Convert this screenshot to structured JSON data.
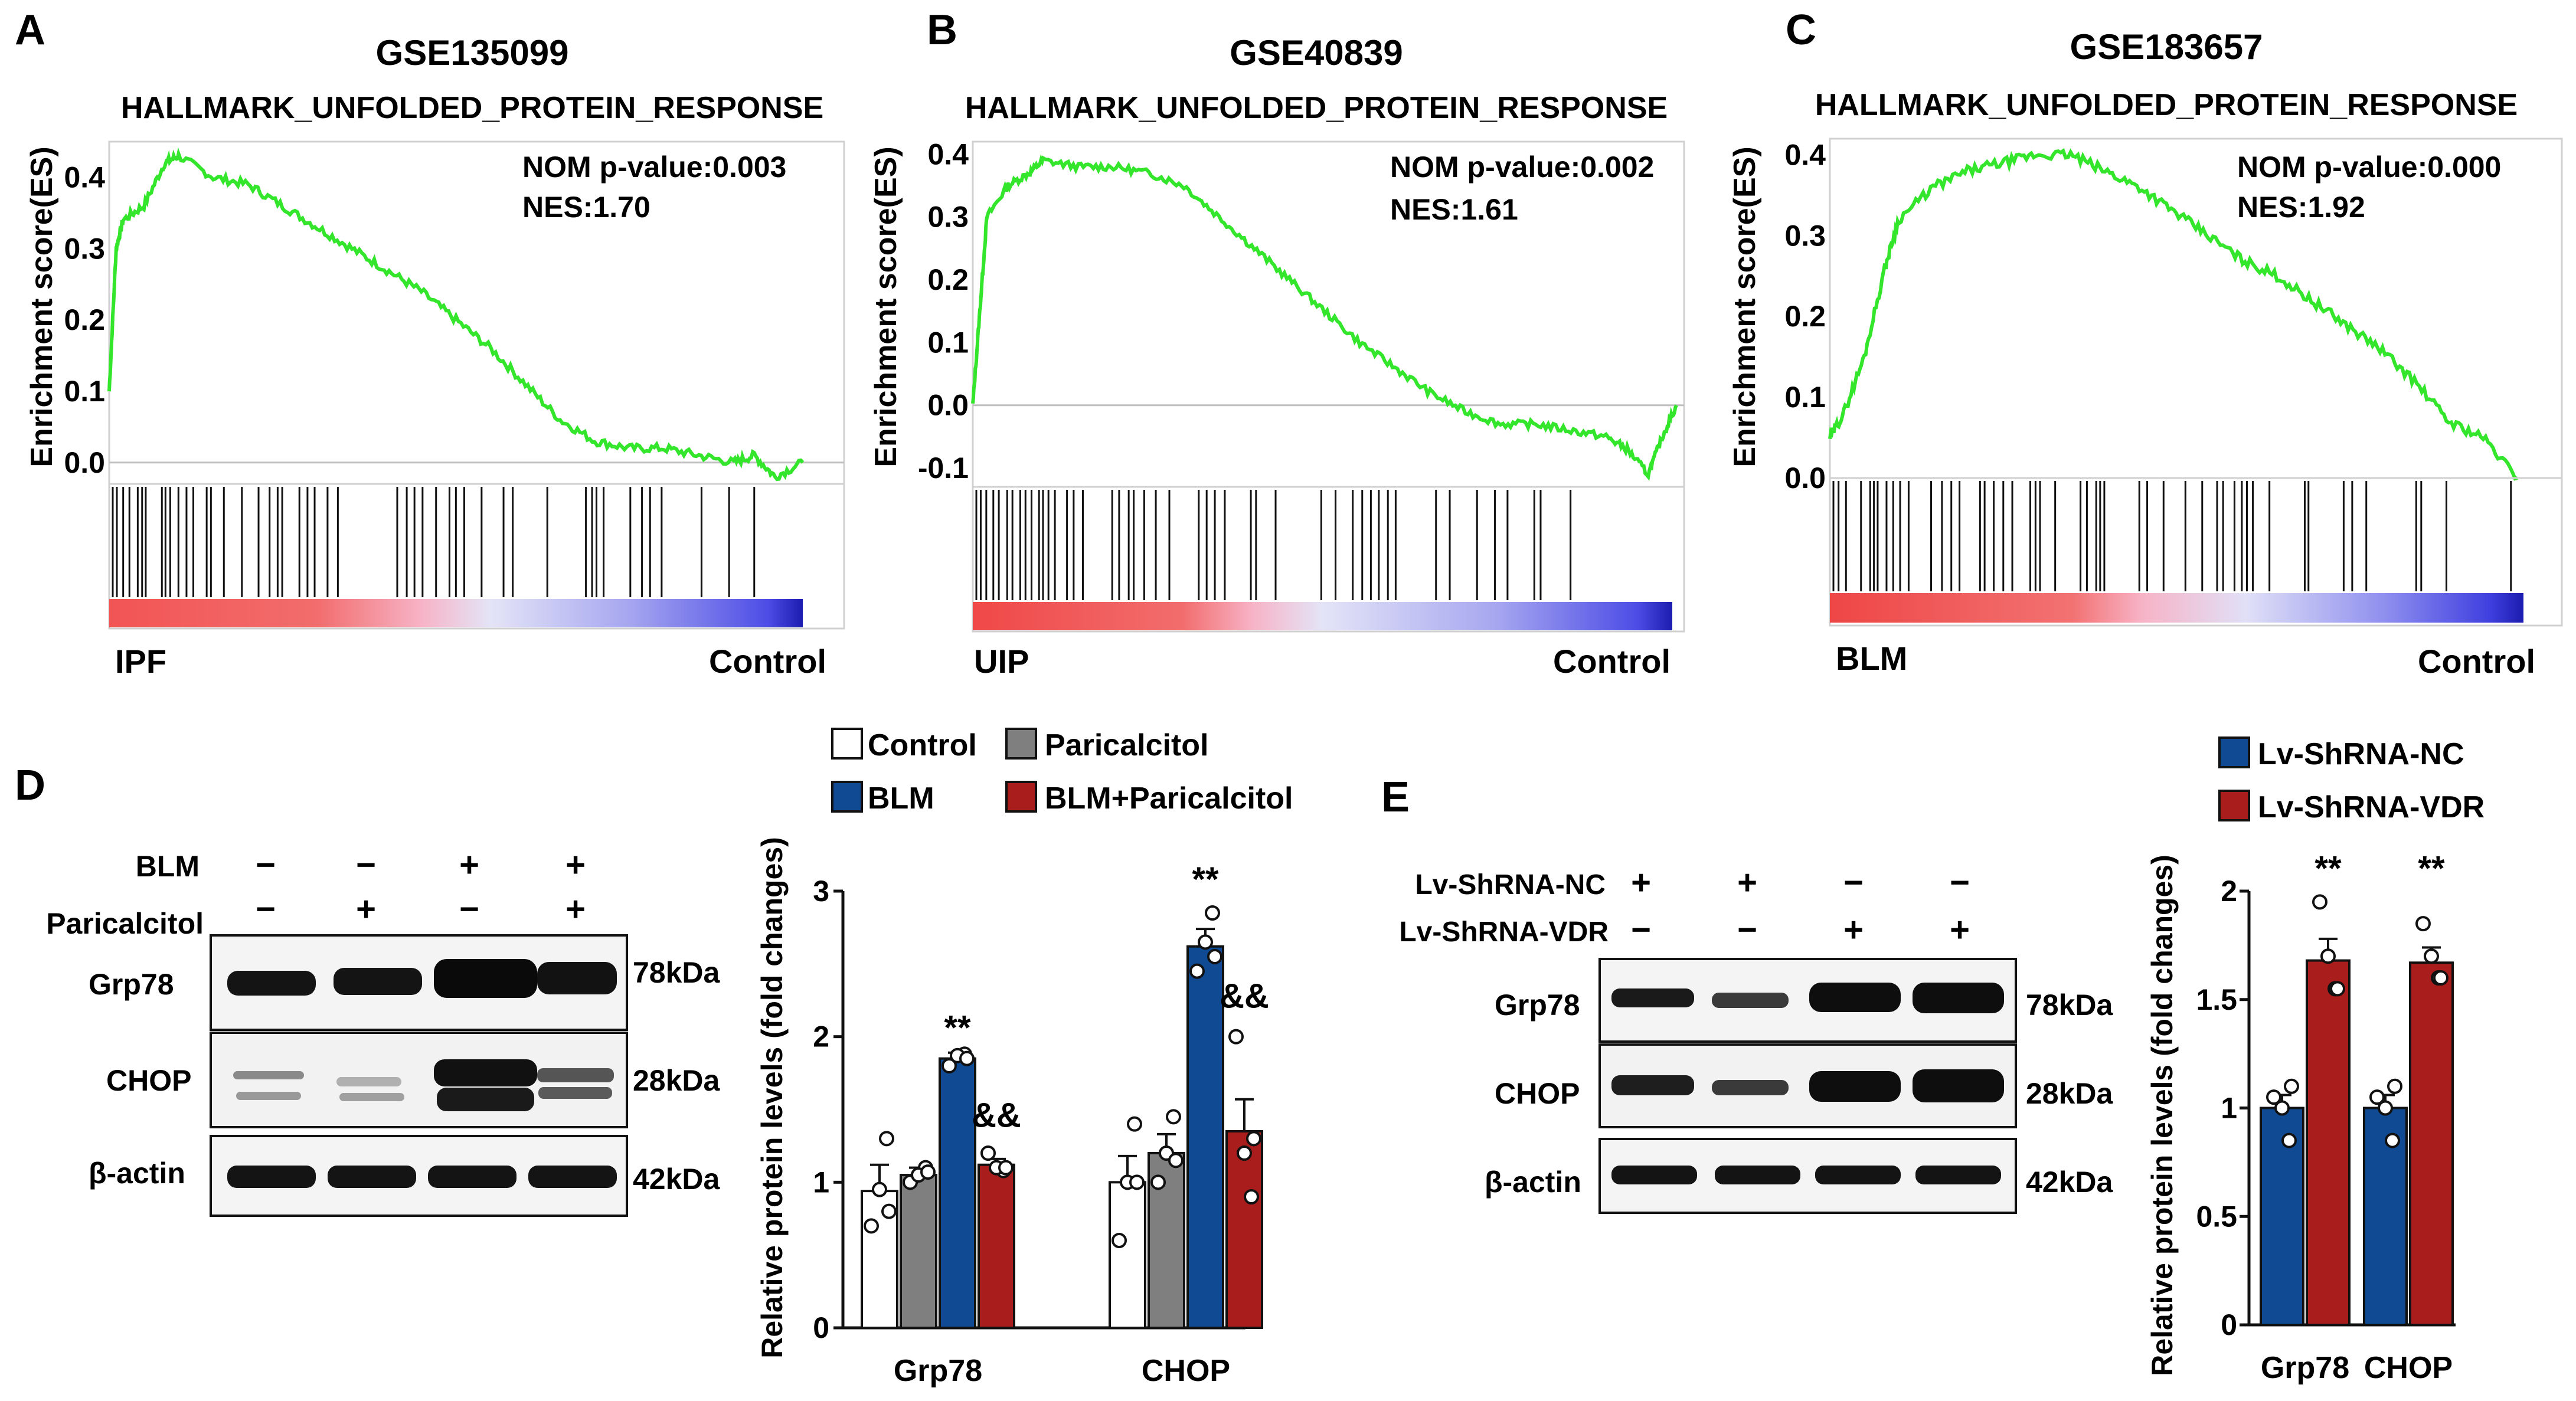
{
  "panels": {
    "A": {
      "letter": "A",
      "dataset": "GSE135099",
      "gene_set": "HALLMARK_UNFOLDED_PROTEIN_RESPONSE",
      "pvalue": "NOM p-value:0.003",
      "nes": "NES:1.70",
      "left_label": "IPF",
      "right_label": "Control",
      "ylabel": "Enrichment score(ES)"
    },
    "B": {
      "letter": "B",
      "dataset": "GSE40839",
      "gene_set": "HALLMARK_UNFOLDED_PROTEIN_RESPONSE",
      "pvalue": "NOM p-value:0.002",
      "nes": "NES:1.61",
      "left_label": "UIP",
      "right_label": "Control",
      "ylabel": "Enrichment score(ES)"
    },
    "C": {
      "letter": "C",
      "dataset": "GSE183657",
      "gene_set": "HALLMARK_UNFOLDED_PROTEIN_RESPONSE",
      "pvalue": "NOM p-value:0.000",
      "nes": "NES:1.92",
      "left_label": "BLM",
      "right_label": "Control",
      "ylabel": "Enrichment score(ES)"
    },
    "D": {
      "letter": "D",
      "blm_label": "BLM",
      "drug_label": "Paricalcitol",
      "blm_signs": [
        "−",
        "−",
        "+",
        "+"
      ],
      "drug_signs": [
        "−",
        "+",
        "−",
        "+"
      ],
      "proteins": [
        "Grp78",
        "CHOP",
        "β-actin"
      ],
      "sizes": [
        "78kDa",
        "28kDa",
        "42kDa"
      ]
    },
    "E": {
      "letter": "E",
      "row1_label": "Lv-ShRNA-NC",
      "row2_label": "Lv-ShRNA-VDR",
      "row1_signs": [
        "+",
        "+",
        "−",
        "−"
      ],
      "row2_signs": [
        "−",
        "−",
        "+",
        "+"
      ],
      "proteins": [
        "Grp78",
        "CHOP",
        "β-actin"
      ],
      "sizes": [
        "78kDa",
        "28kDa",
        "42kDa"
      ]
    }
  },
  "chart_data": [
    {
      "type": "line",
      "id": "A",
      "title": "GSE135099",
      "subtitle": "HALLMARK_UNFOLDED_PROTEIN_RESPONSE",
      "ylabel": "Enrichment score(ES)",
      "ylim": [
        -0.03,
        0.45
      ],
      "yticks": [
        "0.0",
        "0.1",
        "0.2",
        "0.3",
        "0.4"
      ],
      "color": "#33e62c",
      "x": [
        0,
        0.01,
        0.02,
        0.05,
        0.08,
        0.1,
        0.15,
        0.2,
        0.25,
        0.3,
        0.35,
        0.4,
        0.45,
        0.5,
        0.55,
        0.6,
        0.65,
        0.7,
        0.75,
        0.8,
        0.85,
        0.9,
        0.93,
        0.96,
        1.0
      ],
      "y": [
        0.1,
        0.3,
        0.34,
        0.36,
        0.42,
        0.43,
        0.4,
        0.39,
        0.36,
        0.33,
        0.3,
        0.27,
        0.24,
        0.2,
        0.16,
        0.11,
        0.06,
        0.03,
        0.02,
        0.02,
        0.01,
        0.0,
        0.01,
        -0.02,
        0.0
      ]
    },
    {
      "type": "line",
      "id": "B",
      "title": "GSE40839",
      "subtitle": "HALLMARK_UNFOLDED_PROTEIN_RESPONSE",
      "ylabel": "Enrichment score(ES)",
      "ylim": [
        -0.13,
        0.42
      ],
      "yticks": [
        "-0.1",
        "0.0",
        "0.1",
        "0.2",
        "0.3",
        "0.4"
      ],
      "color": "#33e62c",
      "x": [
        0,
        0.01,
        0.02,
        0.05,
        0.08,
        0.1,
        0.15,
        0.2,
        0.25,
        0.3,
        0.35,
        0.4,
        0.45,
        0.5,
        0.55,
        0.6,
        0.65,
        0.7,
        0.75,
        0.8,
        0.85,
        0.9,
        0.93,
        0.96,
        0.98,
        1.0
      ],
      "y": [
        0.0,
        0.15,
        0.3,
        0.35,
        0.37,
        0.39,
        0.38,
        0.38,
        0.37,
        0.35,
        0.3,
        0.25,
        0.2,
        0.15,
        0.1,
        0.06,
        0.02,
        -0.01,
        -0.03,
        -0.03,
        -0.04,
        -0.05,
        -0.07,
        -0.11,
        -0.05,
        0.0
      ]
    },
    {
      "type": "line",
      "id": "C",
      "title": "GSE183657",
      "subtitle": "HALLMARK_UNFOLDED_PROTEIN_RESPONSE",
      "ylabel": "Enrichment score(ES)",
      "ylim": [
        0.0,
        0.42
      ],
      "yticks": [
        "0.0",
        "0.1",
        "0.2",
        "0.3",
        "0.4"
      ],
      "color": "#33e62c",
      "x": [
        0,
        0.02,
        0.05,
        0.08,
        0.1,
        0.15,
        0.2,
        0.25,
        0.3,
        0.35,
        0.4,
        0.45,
        0.5,
        0.55,
        0.6,
        0.65,
        0.7,
        0.75,
        0.8,
        0.85,
        0.9,
        0.95,
        1.0
      ],
      "y": [
        0.05,
        0.08,
        0.15,
        0.26,
        0.32,
        0.36,
        0.38,
        0.39,
        0.4,
        0.4,
        0.38,
        0.36,
        0.33,
        0.3,
        0.27,
        0.25,
        0.22,
        0.19,
        0.16,
        0.12,
        0.07,
        0.05,
        0.0
      ]
    },
    {
      "type": "bar",
      "id": "D",
      "ylabel": "Relative protein levels (fold changes)",
      "categories": [
        "Grp78",
        "CHOP"
      ],
      "ylim": [
        0,
        3
      ],
      "yticks": [
        "0",
        "1",
        "2",
        "3"
      ],
      "series": [
        {
          "name": "Control",
          "color": "#ffffff",
          "values": [
            0.94,
            1.0
          ],
          "errors": [
            0.18,
            0.18
          ],
          "points": [
            [
              0.7,
              1.3,
              0.95,
              0.8
            ],
            [
              0.6,
              1.4,
              1.0,
              1.0
            ]
          ]
        },
        {
          "name": "Paricalcitol",
          "color": "#7f7f7f",
          "values": [
            1.05,
            1.2
          ],
          "errors": [
            0.05,
            0.13
          ],
          "points": [
            [
              1.0,
              1.1,
              1.05,
              1.07
            ],
            [
              1.0,
              1.45,
              1.2,
              1.15
            ]
          ]
        },
        {
          "name": "BLM",
          "color": "#104a92",
          "values": [
            1.85,
            2.62
          ],
          "errors": [
            0.04,
            0.12
          ],
          "points": [
            [
              1.8,
              1.88,
              1.87,
              1.85
            ],
            [
              2.45,
              2.85,
              2.65,
              2.55
            ]
          ]
        },
        {
          "name": "BLM+Paricalcitol",
          "color": "#a91d1d",
          "values": [
            1.12,
            1.35
          ],
          "errors": [
            0.04,
            0.22
          ],
          "points": [
            [
              1.2,
              1.08,
              1.1,
              1.1
            ],
            [
              2.0,
              0.9,
              1.2,
              1.3
            ]
          ]
        }
      ],
      "annotations": [
        {
          "text": "**",
          "category": 0,
          "series": 2,
          "y": 1.98
        },
        {
          "text": "&&",
          "category": 0,
          "series": 3,
          "y": 1.38
        },
        {
          "text": "**",
          "category": 1,
          "series": 2,
          "y": 3.0
        },
        {
          "text": "&&",
          "category": 1,
          "series": 3,
          "y": 2.2
        }
      ]
    },
    {
      "type": "bar",
      "id": "E",
      "ylabel": "Relative protein levels (fold changes)",
      "categories": [
        "Grp78",
        "CHOP"
      ],
      "ylim": [
        0,
        2
      ],
      "yticks": [
        "0",
        "0.5",
        "1",
        "1.5",
        "2"
      ],
      "series": [
        {
          "name": "Lv-ShRNA-NC",
          "color": "#104a92",
          "values": [
            1.0,
            1.0
          ],
          "errors": [
            0.06,
            0.06
          ],
          "points": [
            [
              1.05,
              0.85,
              1.0,
              1.1
            ],
            [
              1.05,
              0.85,
              1.0,
              1.1
            ]
          ]
        },
        {
          "name": "Lv-ShRNA-VDR",
          "color": "#a91d1d",
          "values": [
            1.68,
            1.67
          ],
          "errors": [
            0.1,
            0.07
          ],
          "points": [
            [
              1.95,
              1.55,
              1.7,
              1.55
            ],
            [
              1.85,
              1.6,
              1.7,
              1.6
            ]
          ]
        }
      ],
      "annotations": [
        {
          "text": "**",
          "category": 0,
          "series": 1,
          "y": 2.05
        },
        {
          "text": "**",
          "category": 1,
          "series": 1,
          "y": 2.05
        }
      ]
    }
  ]
}
